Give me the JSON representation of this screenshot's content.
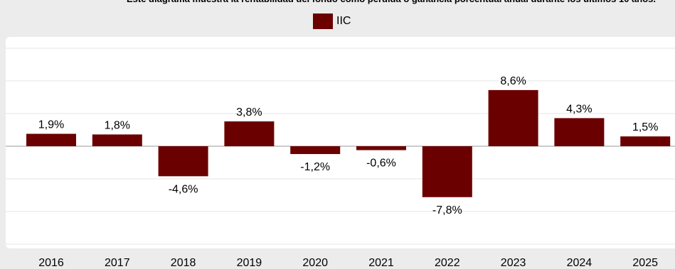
{
  "chart_data": {
    "type": "bar",
    "subtitle": "Este diagrama muestra la rentabilidad del fondo como pérdida o ganancia porcentual anual durante los últimos 10 años.",
    "categories": [
      "2016",
      "2017",
      "2018",
      "2019",
      "2020",
      "2021",
      "2022",
      "2023",
      "2024",
      "2025"
    ],
    "series": [
      {
        "name": "IIC",
        "values": [
          1.9,
          1.8,
          -4.6,
          3.8,
          -1.2,
          -0.6,
          -7.8,
          8.6,
          4.3,
          1.5
        ],
        "labels": [
          "1,9%",
          "1,8%",
          "-4,6%",
          "3,8%",
          "-1,2%",
          "-0,6%",
          "-7,8%",
          "8,6%",
          "4,3%",
          "1,5%"
        ]
      }
    ],
    "ylim": [
      -15,
      15
    ],
    "grid": true,
    "legend": "top-center",
    "colors": {
      "bar": "#6b0000",
      "grid": "#e4e4e4",
      "background": "#ececec",
      "plot": "#ffffff"
    }
  }
}
